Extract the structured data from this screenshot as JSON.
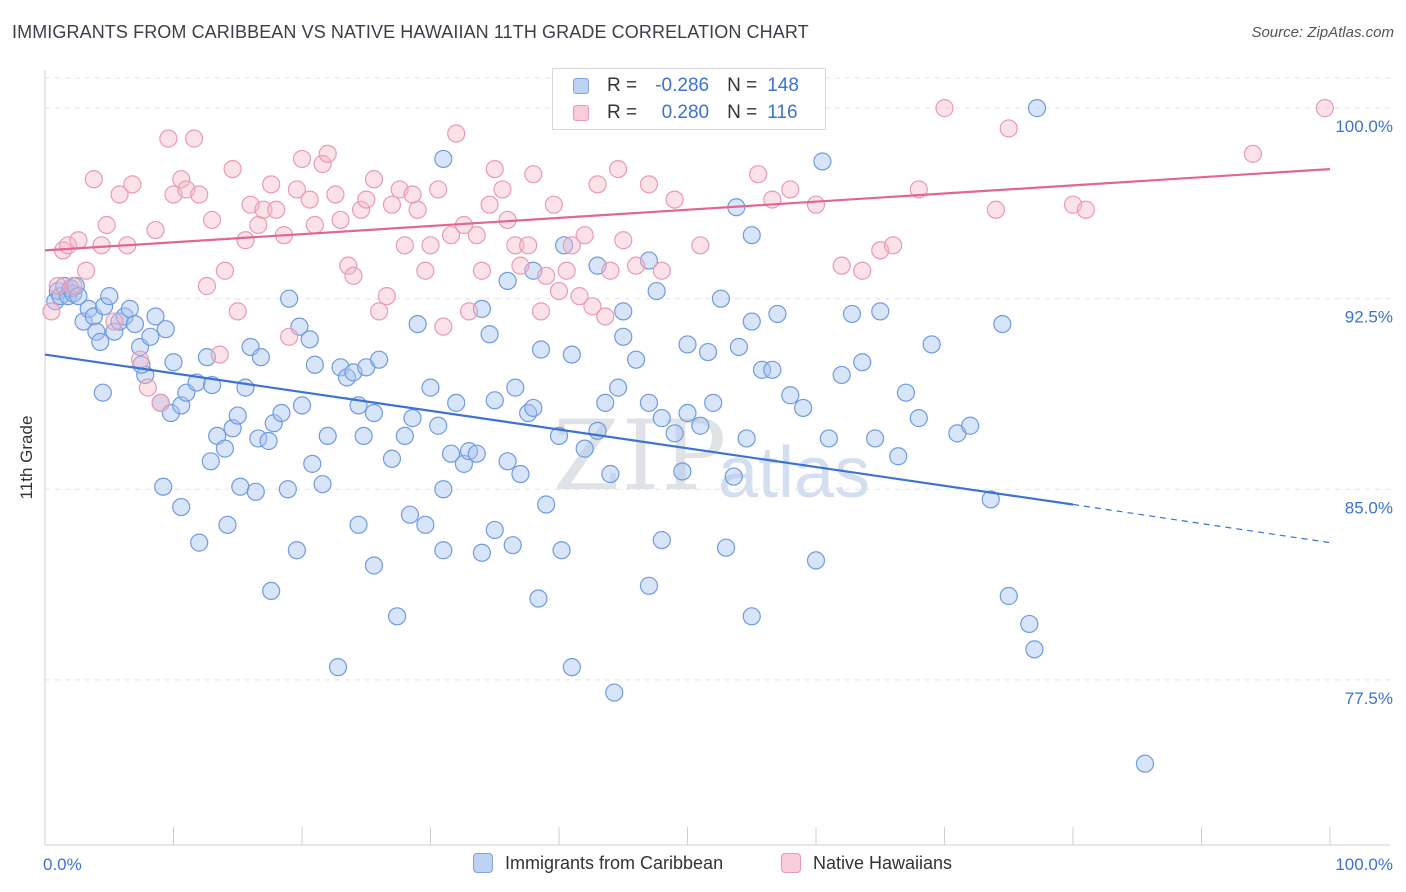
{
  "title": "IMMIGRANTS FROM CARIBBEAN VS NATIVE HAWAIIAN 11TH GRADE CORRELATION CHART",
  "source": "Source: ZipAtlas.com",
  "watermark": {
    "zip": "ZIP",
    "atlas": "atlas"
  },
  "colors": {
    "blue": "#3b73d1",
    "blue_fill": "#a9c4ef",
    "pink": "#e0678f",
    "pink_fill": "#f4b6c9",
    "grid": "#e2e2e2"
  },
  "legend": {
    "rows": [
      {
        "r_label": "R =",
        "r_value": "-0.286",
        "n_label": "N =",
        "n_value": "148"
      },
      {
        "r_label": "R =",
        "r_value": "0.280",
        "n_label": "N =",
        "n_value": "116"
      }
    ],
    "series_names": [
      "Immigrants from Caribbean",
      "Native Hawaiians"
    ]
  },
  "chart_data": {
    "type": "scatter",
    "title": "IMMIGRANTS FROM CARIBBEAN VS NATIVE HAWAIIAN 11TH GRADE CORRELATION CHART",
    "xlabel": "",
    "ylabel": "11th Grade",
    "xlim": [
      0,
      100
    ],
    "ylim": [
      71.0,
      101.5
    ],
    "x_tick_labels": [
      "0.0%",
      "100.0%"
    ],
    "y_ticks": [
      77.5,
      85.0,
      92.5,
      100.0
    ],
    "y_tick_labels": [
      "77.5%",
      "85.0%",
      "92.5%",
      "100.0%"
    ],
    "grid": true,
    "legend_position": "top-center",
    "series": [
      {
        "name": "Immigrants from Caribbean",
        "color": "#3b73d1",
        "trend": {
          "x0": 0,
          "y0": 90.3,
          "x1": 80,
          "y1": 84.4,
          "dashed_to_x": 100,
          "dashed_to_y": 82.9
        },
        "points": [
          [
            0.8,
            92.4
          ],
          [
            1.0,
            92.8
          ],
          [
            1.2,
            92.6
          ],
          [
            1.5,
            93.0
          ],
          [
            1.8,
            92.6
          ],
          [
            2.0,
            92.9
          ],
          [
            2.2,
            92.7
          ],
          [
            2.4,
            93.0
          ],
          [
            2.6,
            92.6
          ],
          [
            3.0,
            91.6
          ],
          [
            3.4,
            92.1
          ],
          [
            3.8,
            91.8
          ],
          [
            4.0,
            91.2
          ],
          [
            4.3,
            90.8
          ],
          [
            4.6,
            92.2
          ],
          [
            5.0,
            92.6
          ],
          [
            5.4,
            91.2
          ],
          [
            5.8,
            91.6
          ],
          [
            6.2,
            91.8
          ],
          [
            6.6,
            92.1
          ],
          [
            7.0,
            91.5
          ],
          [
            7.4,
            90.6
          ],
          [
            7.8,
            89.5
          ],
          [
            8.2,
            91.0
          ],
          [
            8.6,
            91.8
          ],
          [
            9.0,
            88.4
          ],
          [
            9.4,
            91.3
          ],
          [
            9.8,
            88.0
          ],
          [
            10.0,
            90.0
          ],
          [
            10.6,
            88.3
          ],
          [
            11.0,
            88.8
          ],
          [
            11.8,
            89.2
          ],
          [
            12.6,
            90.2
          ],
          [
            13.0,
            89.1
          ],
          [
            13.4,
            87.1
          ],
          [
            14.0,
            86.6
          ],
          [
            14.6,
            87.4
          ],
          [
            15.0,
            87.9
          ],
          [
            15.6,
            89.0
          ],
          [
            16.0,
            90.6
          ],
          [
            16.8,
            90.2
          ],
          [
            16.6,
            87.0
          ],
          [
            17.4,
            86.9
          ],
          [
            17.8,
            87.6
          ],
          [
            18.4,
            88.0
          ],
          [
            19.0,
            92.5
          ],
          [
            19.8,
            91.4
          ],
          [
            20.0,
            88.3
          ],
          [
            20.6,
            90.9
          ],
          [
            21.0,
            89.9
          ],
          [
            21.6,
            85.2
          ],
          [
            22.0,
            87.1
          ],
          [
            23.0,
            89.8
          ],
          [
            23.5,
            89.4
          ],
          [
            24.0,
            89.6
          ],
          [
            24.4,
            88.3
          ],
          [
            24.8,
            87.1
          ],
          [
            25.0,
            89.8
          ],
          [
            25.6,
            88.0
          ],
          [
            26.0,
            90.1
          ],
          [
            27.0,
            86.2
          ],
          [
            28.0,
            87.1
          ],
          [
            28.6,
            87.8
          ],
          [
            29.0,
            91.5
          ],
          [
            30.0,
            89.0
          ],
          [
            30.6,
            87.5
          ],
          [
            31.0,
            85.0
          ],
          [
            31.6,
            86.4
          ],
          [
            32.0,
            88.4
          ],
          [
            32.6,
            86.0
          ],
          [
            33.0,
            86.5
          ],
          [
            33.6,
            86.4
          ],
          [
            34.0,
            92.1
          ],
          [
            34.6,
            91.1
          ],
          [
            35.0,
            88.5
          ],
          [
            36.0,
            86.1
          ],
          [
            36.6,
            89.0
          ],
          [
            37.0,
            85.6
          ],
          [
            37.6,
            88.0
          ],
          [
            38.0,
            88.2
          ],
          [
            38.6,
            90.5
          ],
          [
            39.0,
            84.4
          ],
          [
            40.0,
            87.1
          ],
          [
            41.0,
            90.3
          ],
          [
            42.0,
            86.6
          ],
          [
            43.0,
            87.3
          ],
          [
            43.6,
            88.4
          ],
          [
            44.0,
            85.6
          ],
          [
            44.6,
            89.0
          ],
          [
            45.0,
            91.0
          ],
          [
            46.0,
            90.1
          ],
          [
            47.0,
            88.4
          ],
          [
            47.6,
            92.8
          ],
          [
            48.0,
            87.8
          ],
          [
            49.0,
            87.2
          ],
          [
            49.6,
            85.7
          ],
          [
            50.0,
            88.0
          ],
          [
            51.0,
            87.5
          ],
          [
            51.6,
            90.4
          ],
          [
            52.0,
            88.4
          ],
          [
            52.6,
            92.5
          ],
          [
            53.0,
            82.7
          ],
          [
            53.6,
            85.5
          ],
          [
            54.0,
            90.6
          ],
          [
            54.6,
            87.0
          ],
          [
            55.0,
            91.6
          ],
          [
            55.8,
            89.7
          ],
          [
            56.6,
            89.7
          ],
          [
            57.0,
            91.9
          ],
          [
            58.0,
            88.7
          ],
          [
            59.0,
            88.2
          ],
          [
            60.0,
            82.2
          ],
          [
            61.0,
            87.0
          ],
          [
            62.0,
            89.5
          ],
          [
            62.8,
            91.9
          ],
          [
            63.6,
            90.0
          ],
          [
            64.6,
            87.0
          ],
          [
            65.0,
            92.0
          ],
          [
            66.4,
            86.3
          ],
          [
            67.0,
            88.8
          ],
          [
            68.0,
            87.8
          ],
          [
            69.0,
            90.7
          ],
          [
            71.0,
            87.2
          ],
          [
            72.0,
            87.5
          ],
          [
            73.6,
            84.6
          ],
          [
            75.0,
            80.8
          ],
          [
            76.6,
            79.7
          ],
          [
            77.0,
            78.7
          ],
          [
            85.6,
            74.2
          ],
          [
            4.5,
            88.8
          ],
          [
            7.5,
            89.9
          ],
          [
            9.2,
            85.1
          ],
          [
            10.6,
            84.3
          ],
          [
            12.0,
            82.9
          ],
          [
            12.9,
            86.1
          ],
          [
            14.2,
            83.6
          ],
          [
            15.2,
            85.1
          ],
          [
            16.4,
            84.9
          ],
          [
            17.6,
            81.0
          ],
          [
            18.9,
            85.0
          ],
          [
            19.6,
            82.6
          ],
          [
            20.8,
            86.0
          ],
          [
            22.8,
            78.0
          ],
          [
            24.4,
            83.6
          ],
          [
            25.6,
            82.0
          ],
          [
            27.4,
            80.0
          ],
          [
            28.4,
            84.0
          ],
          [
            29.6,
            83.6
          ],
          [
            31.0,
            82.6
          ],
          [
            34.0,
            82.5
          ],
          [
            35.0,
            83.4
          ],
          [
            36.4,
            82.8
          ],
          [
            38.4,
            80.7
          ],
          [
            40.2,
            82.6
          ],
          [
            41.0,
            78.0
          ],
          [
            44.3,
            77.0
          ],
          [
            47.0,
            81.2
          ],
          [
            48.0,
            83.0
          ],
          [
            55.0,
            80.0
          ],
          [
            55.0,
            95.0
          ],
          [
            31.0,
            98.0
          ],
          [
            36.0,
            93.2
          ],
          [
            38.0,
            93.6
          ],
          [
            40.4,
            94.6
          ],
          [
            43.0,
            93.8
          ],
          [
            45.0,
            92.0
          ],
          [
            47.0,
            94.0
          ],
          [
            50.0,
            90.7
          ],
          [
            53.8,
            96.1
          ],
          [
            60.5,
            97.9
          ],
          [
            74.5,
            91.5
          ],
          [
            77.2,
            100.0
          ]
        ]
      },
      {
        "name": "Native Hawaiians",
        "color": "#e0678f",
        "trend": {
          "x0": 0,
          "y0": 94.4,
          "x1": 100,
          "y1": 97.6
        },
        "points": [
          [
            0.5,
            92.0
          ],
          [
            1.0,
            93.0
          ],
          [
            1.4,
            94.4
          ],
          [
            1.8,
            94.6
          ],
          [
            2.2,
            93.0
          ],
          [
            2.6,
            94.8
          ],
          [
            3.2,
            93.6
          ],
          [
            3.8,
            97.2
          ],
          [
            4.4,
            94.6
          ],
          [
            4.8,
            95.4
          ],
          [
            5.4,
            91.6
          ],
          [
            5.8,
            96.6
          ],
          [
            6.4,
            94.6
          ],
          [
            6.8,
            97.0
          ],
          [
            7.4,
            90.1
          ],
          [
            8.0,
            89.0
          ],
          [
            8.6,
            95.2
          ],
          [
            9.0,
            88.4
          ],
          [
            9.6,
            98.8
          ],
          [
            10.0,
            96.6
          ],
          [
            10.6,
            97.2
          ],
          [
            11.0,
            96.8
          ],
          [
            11.6,
            98.8
          ],
          [
            12.0,
            96.6
          ],
          [
            12.6,
            93.0
          ],
          [
            13.0,
            95.6
          ],
          [
            13.6,
            90.3
          ],
          [
            14.0,
            93.6
          ],
          [
            14.6,
            97.6
          ],
          [
            15.0,
            92.0
          ],
          [
            15.6,
            94.8
          ],
          [
            16.0,
            96.2
          ],
          [
            16.6,
            95.4
          ],
          [
            17.0,
            96.0
          ],
          [
            17.6,
            97.0
          ],
          [
            18.0,
            96.0
          ],
          [
            18.6,
            95.0
          ],
          [
            19.0,
            91.0
          ],
          [
            19.6,
            96.8
          ],
          [
            20.0,
            98.0
          ],
          [
            20.6,
            96.4
          ],
          [
            21.0,
            95.4
          ],
          [
            21.6,
            97.8
          ],
          [
            22.0,
            98.2
          ],
          [
            22.6,
            96.6
          ],
          [
            23.0,
            95.6
          ],
          [
            23.6,
            93.8
          ],
          [
            24.0,
            93.4
          ],
          [
            24.6,
            96.0
          ],
          [
            25.0,
            96.4
          ],
          [
            25.6,
            97.2
          ],
          [
            26.0,
            92.0
          ],
          [
            26.6,
            92.6
          ],
          [
            27.0,
            96.2
          ],
          [
            27.6,
            96.8
          ],
          [
            28.0,
            94.6
          ],
          [
            28.6,
            96.6
          ],
          [
            29.0,
            96.0
          ],
          [
            29.6,
            93.6
          ],
          [
            30.0,
            94.6
          ],
          [
            30.6,
            96.8
          ],
          [
            31.0,
            91.4
          ],
          [
            31.6,
            95.0
          ],
          [
            32.0,
            99.0
          ],
          [
            32.6,
            95.4
          ],
          [
            33.0,
            92.0
          ],
          [
            33.6,
            95.0
          ],
          [
            34.0,
            93.6
          ],
          [
            34.6,
            96.2
          ],
          [
            35.0,
            97.6
          ],
          [
            35.6,
            96.8
          ],
          [
            36.0,
            95.6
          ],
          [
            36.6,
            94.6
          ],
          [
            37.0,
            93.8
          ],
          [
            37.6,
            94.6
          ],
          [
            38.0,
            97.4
          ],
          [
            38.6,
            92.0
          ],
          [
            39.0,
            93.4
          ],
          [
            39.6,
            96.2
          ],
          [
            40.0,
            92.8
          ],
          [
            40.6,
            93.6
          ],
          [
            41.0,
            94.6
          ],
          [
            41.6,
            92.6
          ],
          [
            42.0,
            95.0
          ],
          [
            42.6,
            92.2
          ],
          [
            43.0,
            97.0
          ],
          [
            43.6,
            91.8
          ],
          [
            44.0,
            93.6
          ],
          [
            44.6,
            97.6
          ],
          [
            45.0,
            94.8
          ],
          [
            46.0,
            93.8
          ],
          [
            47.0,
            97.0
          ],
          [
            48.0,
            93.6
          ],
          [
            49.0,
            96.4
          ],
          [
            50.0,
            100.0
          ],
          [
            51.0,
            94.6
          ],
          [
            52.0,
            100.0
          ],
          [
            54.0,
            100.0
          ],
          [
            55.5,
            97.4
          ],
          [
            56.6,
            96.4
          ],
          [
            58.0,
            96.8
          ],
          [
            60.0,
            96.2
          ],
          [
            62.0,
            93.8
          ],
          [
            63.6,
            93.6
          ],
          [
            65.0,
            94.4
          ],
          [
            66.0,
            94.6
          ],
          [
            68.0,
            96.8
          ],
          [
            70.0,
            100.0
          ],
          [
            74.0,
            96.0
          ],
          [
            75.0,
            99.2
          ],
          [
            80.0,
            96.2
          ],
          [
            81.0,
            96.0
          ],
          [
            94.0,
            98.2
          ],
          [
            99.6,
            100.0
          ]
        ]
      }
    ]
  }
}
